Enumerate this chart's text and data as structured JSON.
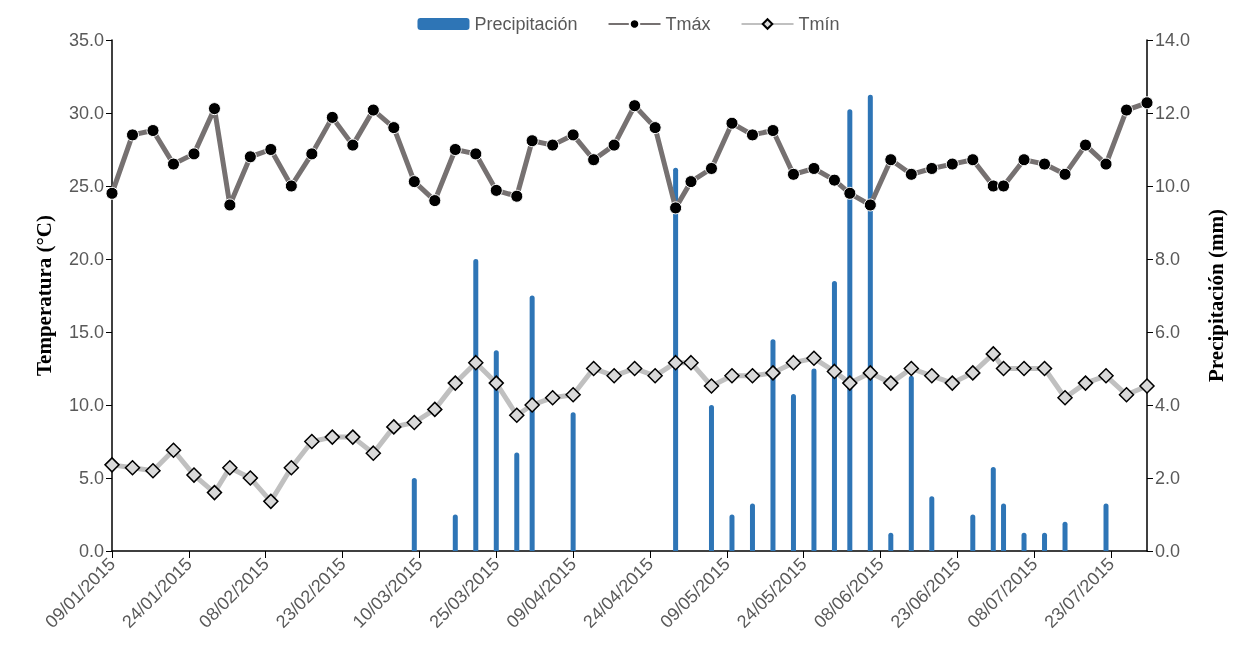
{
  "chart_data": {
    "type": "line",
    "ylabel": "Temperatura (°C)",
    "y2label": "Precipitación (mm)",
    "legend": "top",
    "xlim": [
      "2015-01-09",
      "2015-07-30"
    ],
    "xticks": [
      {
        "value": "2015-01-09",
        "label": "09/01/2015"
      },
      {
        "value": "2015-01-24",
        "label": "24/01/2015"
      },
      {
        "value": "2015-02-08",
        "label": "08/02/2015"
      },
      {
        "value": "2015-02-23",
        "label": "23/02/2015"
      },
      {
        "value": "2015-03-10",
        "label": "10/03/2015"
      },
      {
        "value": "2015-03-25",
        "label": "25/03/2015"
      },
      {
        "value": "2015-04-09",
        "label": "09/04/2015"
      },
      {
        "value": "2015-04-24",
        "label": "24/04/2015"
      },
      {
        "value": "2015-05-09",
        "label": "09/05/2015"
      },
      {
        "value": "2015-05-24",
        "label": "24/05/2015"
      },
      {
        "value": "2015-06-08",
        "label": "08/06/2015"
      },
      {
        "value": "2015-06-23",
        "label": "23/06/2015"
      },
      {
        "value": "2015-07-08",
        "label": "08/07/2015"
      },
      {
        "value": "2015-07-23",
        "label": "23/07/2015"
      }
    ],
    "ylim": [
      0,
      35
    ],
    "yticks": [
      {
        "value": 0,
        "label": "0.0"
      },
      {
        "value": 5,
        "label": "5.0"
      },
      {
        "value": 10,
        "label": "10.0"
      },
      {
        "value": 15,
        "label": "15.0"
      },
      {
        "value": 20,
        "label": "20.0"
      },
      {
        "value": 25,
        "label": "25.0"
      },
      {
        "value": 30,
        "label": "30.0"
      },
      {
        "value": 35,
        "label": "35.0"
      }
    ],
    "y2lim": [
      0,
      14
    ],
    "y2ticks": [
      {
        "value": 0,
        "label": "0.0"
      },
      {
        "value": 2,
        "label": "2.0"
      },
      {
        "value": 4,
        "label": "4.0"
      },
      {
        "value": 6,
        "label": "6.0"
      },
      {
        "value": 8,
        "label": "8.0"
      },
      {
        "value": 10,
        "label": "10.0"
      },
      {
        "value": 12,
        "label": "12.0"
      },
      {
        "value": 14,
        "label": "14.0"
      }
    ],
    "x": [
      "2015-01-09",
      "2015-01-13",
      "2015-01-17",
      "2015-01-21",
      "2015-01-25",
      "2015-01-29",
      "2015-02-01",
      "2015-02-05",
      "2015-02-09",
      "2015-02-13",
      "2015-02-17",
      "2015-02-21",
      "2015-02-25",
      "2015-03-01",
      "2015-03-05",
      "2015-03-09",
      "2015-03-13",
      "2015-03-17",
      "2015-03-21",
      "2015-03-25",
      "2015-03-29",
      "2015-04-01",
      "2015-04-05",
      "2015-04-09",
      "2015-04-13",
      "2015-04-17",
      "2015-04-21",
      "2015-04-25",
      "2015-04-29",
      "2015-05-02",
      "2015-05-06",
      "2015-05-10",
      "2015-05-14",
      "2015-05-18",
      "2015-05-22",
      "2015-05-26",
      "2015-05-30",
      "2015-06-02",
      "2015-06-06",
      "2015-06-10",
      "2015-06-14",
      "2015-06-18",
      "2015-06-22",
      "2015-06-26",
      "2015-06-30",
      "2015-07-02",
      "2015-07-06",
      "2015-07-10",
      "2015-07-14",
      "2015-07-18",
      "2015-07-22",
      "2015-07-26",
      "2015-07-30"
    ],
    "series": [
      {
        "name": "Precipitación",
        "type": "bar",
        "axis": "y2",
        "color": "#2e75b6",
        "x": [
          "2015-03-09",
          "2015-03-17",
          "2015-03-21",
          "2015-03-25",
          "2015-03-29",
          "2015-04-01",
          "2015-04-09",
          "2015-04-29",
          "2015-05-06",
          "2015-05-10",
          "2015-05-14",
          "2015-05-18",
          "2015-05-22",
          "2015-05-26",
          "2015-05-30",
          "2015-06-02",
          "2015-06-06",
          "2015-06-10",
          "2015-06-14",
          "2015-06-18",
          "2015-06-26",
          "2015-06-30",
          "2015-07-02",
          "2015-07-06",
          "2015-07-10",
          "2015-07-14",
          "2015-07-22"
        ],
        "values": [
          2.0,
          1.0,
          8.0,
          5.5,
          2.7,
          7.0,
          3.8,
          10.5,
          4.0,
          1.0,
          1.3,
          5.8,
          4.3,
          5.0,
          7.4,
          12.1,
          12.5,
          0.5,
          4.8,
          1.5,
          1.0,
          2.3,
          1.3,
          0.5,
          0.5,
          0.8,
          1.3
        ]
      },
      {
        "name": "Tmáx",
        "color": "#767171",
        "marker": "circle",
        "values": [
          24.5,
          28.5,
          28.8,
          26.5,
          27.2,
          30.3,
          23.7,
          27.0,
          27.5,
          25.0,
          27.2,
          29.7,
          27.8,
          30.2,
          29.0,
          25.3,
          24.0,
          27.5,
          27.2,
          24.7,
          24.3,
          28.1,
          27.8,
          28.5,
          26.8,
          27.8,
          30.5,
          29.0,
          23.5,
          25.3,
          26.2,
          29.3,
          28.5,
          28.8,
          25.8,
          26.2,
          25.4,
          24.5,
          23.7,
          26.8,
          25.8,
          26.2,
          26.5,
          26.8,
          25.0,
          25.0,
          26.8,
          26.5,
          25.8,
          27.8,
          26.5,
          30.2,
          30.7
        ]
      },
      {
        "name": "Tmín",
        "color": "#c0c0c0",
        "marker": "diamond",
        "values": [
          5.9,
          5.7,
          5.5,
          6.9,
          5.2,
          4.0,
          5.7,
          5.0,
          3.4,
          5.7,
          7.5,
          7.8,
          7.8,
          6.7,
          8.5,
          8.8,
          9.7,
          11.5,
          12.9,
          11.5,
          9.3,
          10.0,
          10.5,
          10.7,
          12.5,
          12.0,
          12.5,
          12.0,
          12.9,
          12.9,
          11.3,
          12.0,
          12.0,
          12.2,
          12.9,
          13.2,
          12.3,
          11.5,
          12.2,
          11.5,
          12.5,
          12.0,
          11.5,
          12.2,
          13.5,
          12.5,
          12.5,
          12.5,
          10.5,
          11.5,
          12.0,
          10.7,
          11.3
        ]
      }
    ]
  }
}
